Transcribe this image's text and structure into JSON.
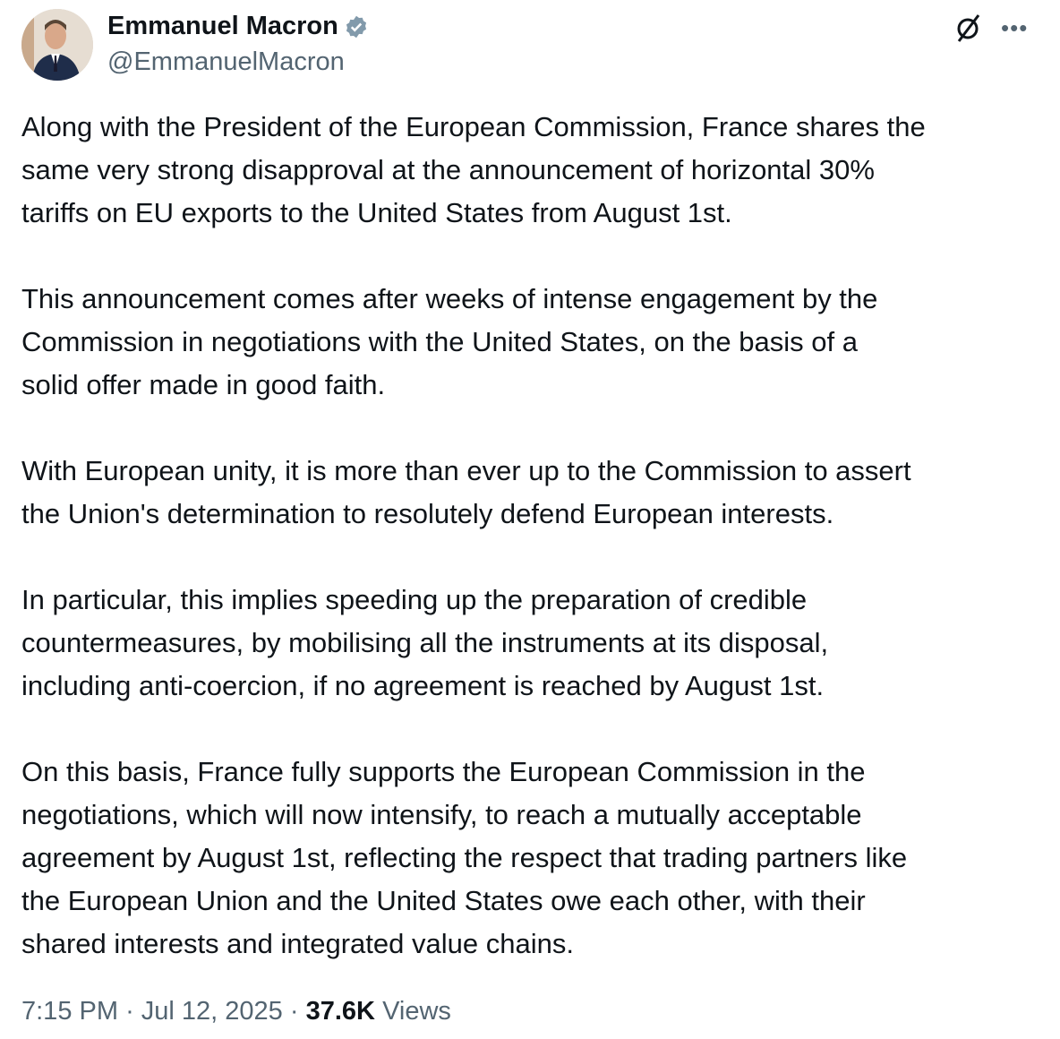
{
  "author": {
    "name": "Emmanuel Macron",
    "handle": "@EmmanuelMacron",
    "verified": true,
    "verified_color": "#829aab"
  },
  "icons": {
    "grok": "grok-icon",
    "more": "more-icon"
  },
  "tweet": {
    "paragraphs": [
      [
        "Along with the President of the European Commission, France shares the",
        "same very strong disapproval at the announcement of horizontal 30%",
        "tariffs on EU exports to the United States from August 1st."
      ],
      [
        "This announcement comes after weeks of intense engagement by the",
        "Commission in negotiations with the United States, on the basis of a",
        "solid offer made in good faith."
      ],
      [
        "With European unity, it is more than ever up to the Commission to assert",
        "the Union's determination to resolutely defend European interests."
      ],
      [
        "In particular, this implies speeding up the preparation of credible",
        "countermeasures, by mobilising all the instruments at its disposal,",
        "including anti-coercion, if no agreement is reached by August 1st."
      ],
      [
        "On this basis, France fully supports the European Commission in the",
        "negotiations, which will now intensify, to reach a mutually acceptable",
        "agreement by August 1st, reflecting the respect that trading partners like",
        "the European Union and the United States owe each other, with their",
        "shared interests and integrated value chains."
      ]
    ],
    "time": "7:15 PM",
    "date": "Jul 12, 2025",
    "separator": "·",
    "views_count": "37.6K",
    "views_label": "Views"
  }
}
